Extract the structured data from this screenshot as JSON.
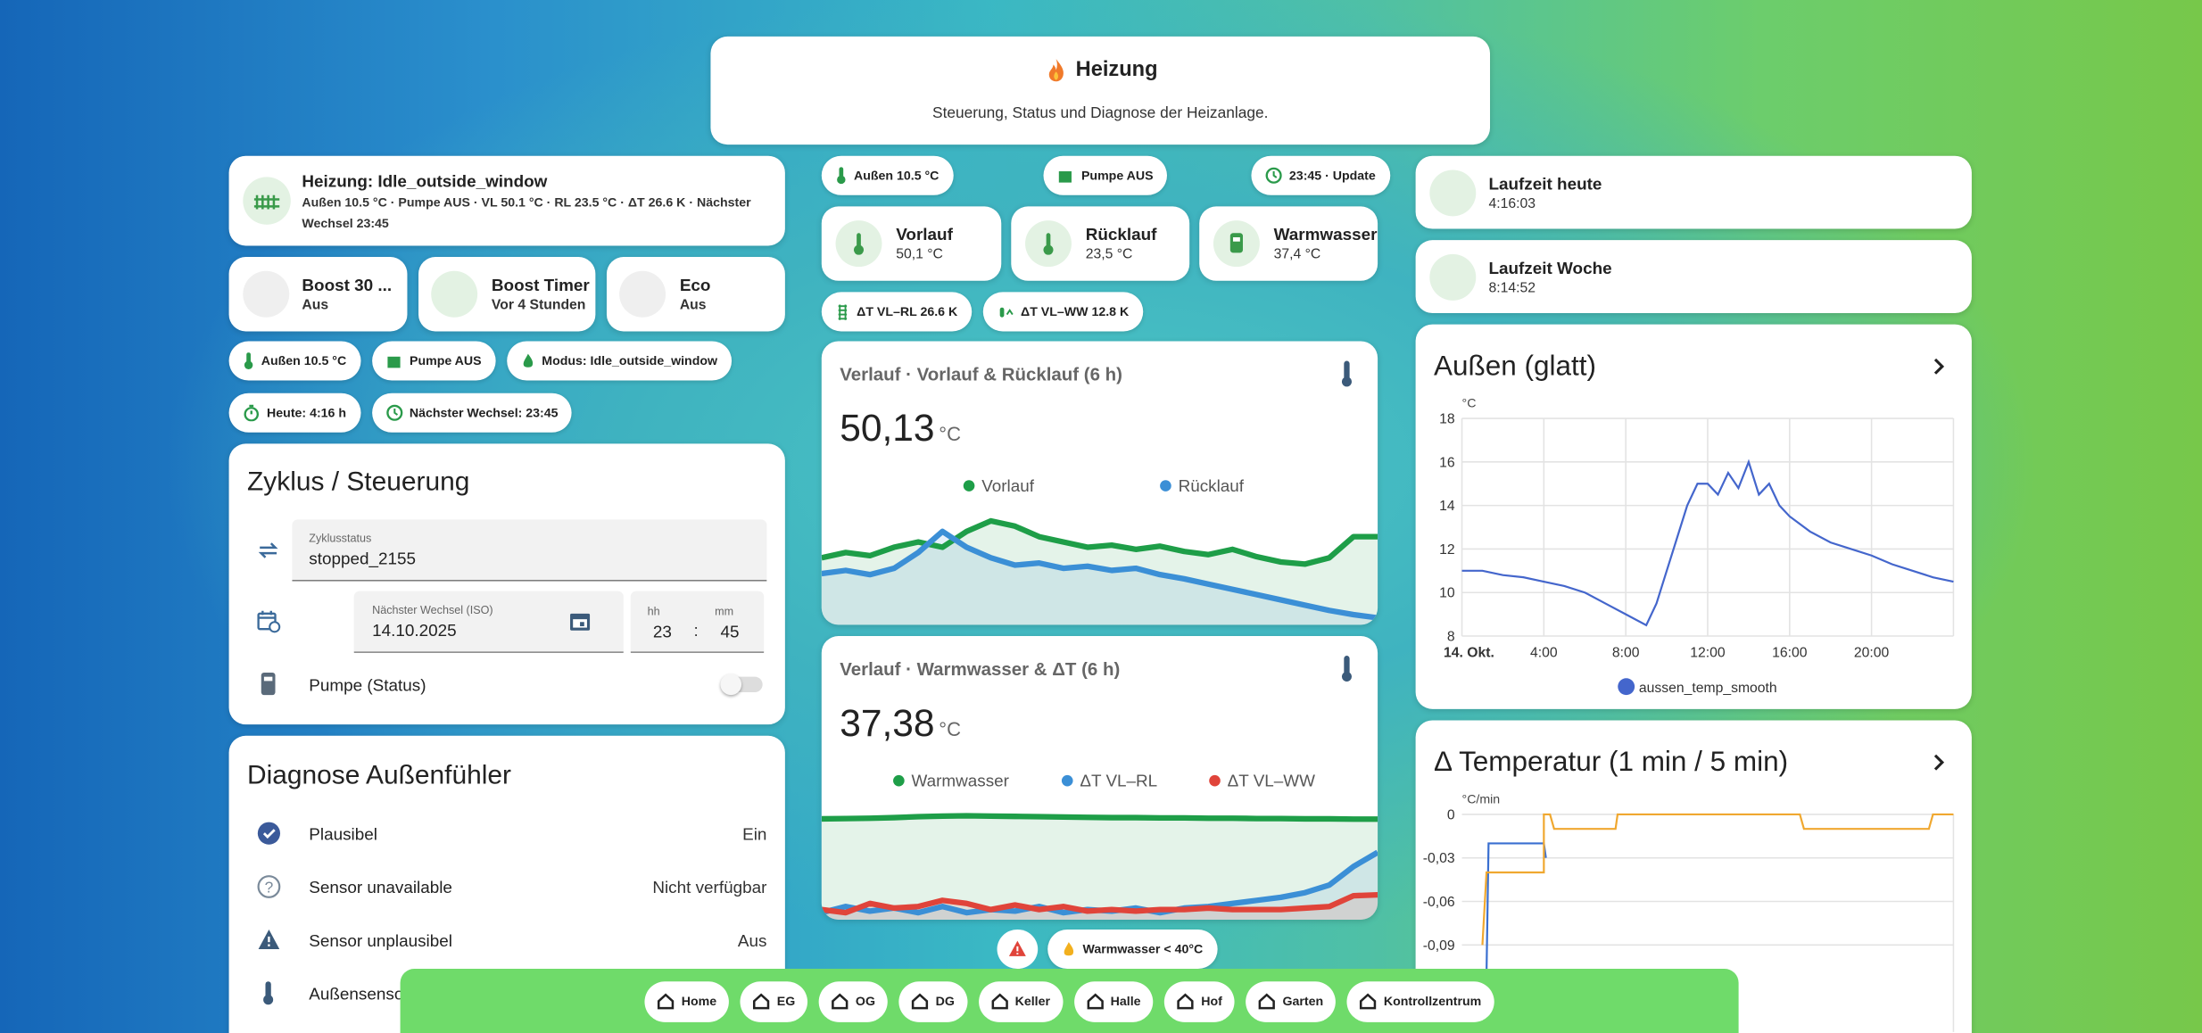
{
  "header": {
    "title": "Heizung",
    "subtitle": "Steuerung, Status und Diagnose der Heizanlage."
  },
  "status": {
    "title": "Heizung: Idle_outside_window",
    "detail": "Außen 10.5 °C · Pumpe AUS · VL 50.1 °C · RL 23.5 °C · ΔT 26.6 K · Nächster Wechsel 23:45"
  },
  "buttons": [
    {
      "name": "Boost 30 ...",
      "state": "Aus"
    },
    {
      "name": "Boost Timer",
      "state": "Vor 4 Stunden"
    },
    {
      "name": "Eco",
      "state": "Aus"
    }
  ],
  "chips_left": [
    "Außen 10.5 °C",
    "Pumpe AUS",
    "Modus: Idle_outside_window",
    "Heute: 4:16 h",
    "Nächster Wechsel: 23:45"
  ],
  "cycle": {
    "title": "Zyklus / Steuerung",
    "status_label": "Zyklusstatus",
    "status_value": "stopped_2155",
    "date_label": "Nächster Wechsel (ISO)",
    "date_value": "14.10.2025",
    "hour_label": "hh",
    "hour_value": "23",
    "minute_label": "mm",
    "minute_value": "45",
    "pump_label": "Pumpe (Status)"
  },
  "diagnosis": {
    "title": "Diagnose Außenfühler",
    "rows": [
      {
        "label": "Plausibel",
        "value": "Ein"
      },
      {
        "label": "Sensor unavailable",
        "value": "Nicht verfügbar"
      },
      {
        "label": "Sensor unplausibel",
        "value": "Aus"
      },
      {
        "label": "Außensensor"
      }
    ]
  },
  "chips_mid": [
    "Außen 10.5 °C",
    "Pumpe AUS",
    "23:45 · Update"
  ],
  "temps": [
    {
      "name": "Vorlauf",
      "value": "50,1 °C"
    },
    {
      "name": "Rücklauf",
      "value": "23,5 °C"
    },
    {
      "name": "Warmwasser",
      "value": "37,4 °C"
    }
  ],
  "delta_chips": [
    "ΔT VL–RL 26.6 K",
    "ΔT VL–WW 12.8 K"
  ],
  "alert_chip": "Warmwasser < 40°C",
  "runtime": [
    {
      "name": "Laufzeit heute",
      "value": "4:16:03"
    },
    {
      "name": "Laufzeit Woche",
      "value": "8:14:52"
    }
  ],
  "nav": [
    "Home",
    "EG",
    "OG",
    "DG",
    "Keller",
    "Halle",
    "Hof",
    "Garten",
    "Kontrollzentrum"
  ],
  "chart_data": [
    {
      "type": "sparkline",
      "title": "Verlauf · Vorlauf & Rücklauf (6 h)",
      "value": "50,13",
      "unit": "°C",
      "series": [
        {
          "name": "Vorlauf",
          "color": "#1e9e48",
          "values": [
            49,
            49.5,
            49.2,
            50,
            50.5,
            50,
            51.5,
            52.5,
            52,
            51,
            50.5,
            50,
            50.2,
            49.8,
            50.1,
            49.6,
            49.3,
            49.8,
            49.1,
            48.6,
            48.4,
            49,
            51,
            51
          ]
        },
        {
          "name": "Rücklauf",
          "color": "#3b8fd6",
          "values": [
            47.5,
            47.8,
            47.4,
            48,
            49.5,
            51.5,
            50,
            49,
            48.3,
            48.5,
            48,
            48.2,
            47.8,
            48,
            47.4,
            47,
            46.5,
            46,
            45.5,
            45,
            44.5,
            44,
            43.6,
            43.3
          ]
        }
      ]
    },
    {
      "type": "sparkline",
      "title": "Verlauf · Warmwasser & ΔT (6 h)",
      "value": "37,38",
      "unit": "°C",
      "series": [
        {
          "name": "Warmwasser",
          "color": "#1e9e48",
          "values": [
            37.5,
            37.6,
            37.7,
            37.9,
            38.2,
            38.4,
            38.5,
            38.4,
            38.3,
            38.2,
            38.1,
            38,
            37.9,
            37.9,
            37.8,
            37.8,
            37.7,
            37.7,
            37.6,
            37.6,
            37.5,
            37.5,
            37.4,
            37.4
          ]
        },
        {
          "name": "ΔT VL–RL",
          "color": "#3b8fd6",
          "values": [
            7,
            9,
            7.5,
            8.5,
            7,
            9,
            7,
            8,
            7.5,
            9,
            7,
            8,
            7.5,
            8.5,
            7,
            8.5,
            9,
            10,
            11,
            12,
            13.5,
            16,
            22,
            26.6
          ]
        },
        {
          "name": "ΔT VL–WW",
          "color": "#e0443a",
          "values": [
            8,
            7,
            10,
            8.5,
            9,
            11,
            10,
            8,
            9.5,
            8,
            9,
            7.5,
            8,
            7.5,
            8,
            8,
            8.5,
            8,
            8,
            8,
            8.5,
            9,
            12.5,
            12.8
          ]
        }
      ]
    },
    {
      "type": "line",
      "title": "Außen (glatt)",
      "y_label": "°C",
      "x": [
        0,
        1,
        2,
        3,
        4,
        5,
        6,
        7,
        8,
        9,
        9.5,
        10,
        10.5,
        11,
        11.5,
        12,
        12.5,
        13,
        13.5,
        14,
        14.5,
        15,
        15.5,
        16,
        17,
        18,
        19,
        20,
        21,
        22,
        23,
        24
      ],
      "series": [
        {
          "name": "aussen_temp_smooth",
          "color": "#4466cc",
          "values": [
            11,
            11,
            10.8,
            10.7,
            10.5,
            10.3,
            10,
            9.5,
            9,
            8.5,
            9.5,
            11,
            12.5,
            14,
            15,
            15,
            14.5,
            15.5,
            14.8,
            16,
            14.5,
            15,
            14,
            13.5,
            12.8,
            12.3,
            12,
            11.7,
            11.3,
            11,
            10.7,
            10.5
          ]
        }
      ],
      "xlim": [
        0,
        24
      ],
      "xticks": [
        {
          "value": 0,
          "label": "14. Okt."
        },
        {
          "value": 4,
          "label": "4:00"
        },
        {
          "value": 8,
          "label": "8:00"
        },
        {
          "value": 12,
          "label": "12:00"
        },
        {
          "value": 16,
          "label": "16:00"
        },
        {
          "value": 20,
          "label": "20:00"
        }
      ],
      "ylim": [
        8,
        18
      ],
      "yticks": [
        8,
        10,
        12,
        14,
        16,
        18
      ],
      "grid": true
    },
    {
      "type": "line",
      "title": "Δ Temperatur (1 min / 5 min)",
      "y_label": "°C/min",
      "series": [
        {
          "color": "#3a6fd0",
          "x": [
            1.2,
            1.3,
            4,
            4.1
          ],
          "values": [
            -0.11,
            -0.02,
            -0.02,
            -0.03
          ]
        },
        {
          "color": "#f0a830",
          "x": [
            1,
            1.2,
            4,
            4,
            4.3,
            4.5,
            7.5,
            7.6,
            11.5,
            11.6,
            16.5,
            16.7,
            22.8,
            23,
            24
          ],
          "values": [
            -0.09,
            -0.04,
            -0.04,
            0,
            0,
            -0.01,
            -0.01,
            0,
            0,
            0,
            0,
            -0.01,
            -0.01,
            0,
            0
          ]
        }
      ],
      "xlim": [
        0,
        24
      ],
      "ylim": [
        -0.15,
        0
      ],
      "yticks": [
        0,
        {
          "value": -0.03,
          "label": "-0,03"
        },
        {
          "value": -0.06,
          "label": "-0,06"
        },
        {
          "value": -0.09,
          "label": "-0,09"
        }
      ],
      "grid": true
    }
  ]
}
